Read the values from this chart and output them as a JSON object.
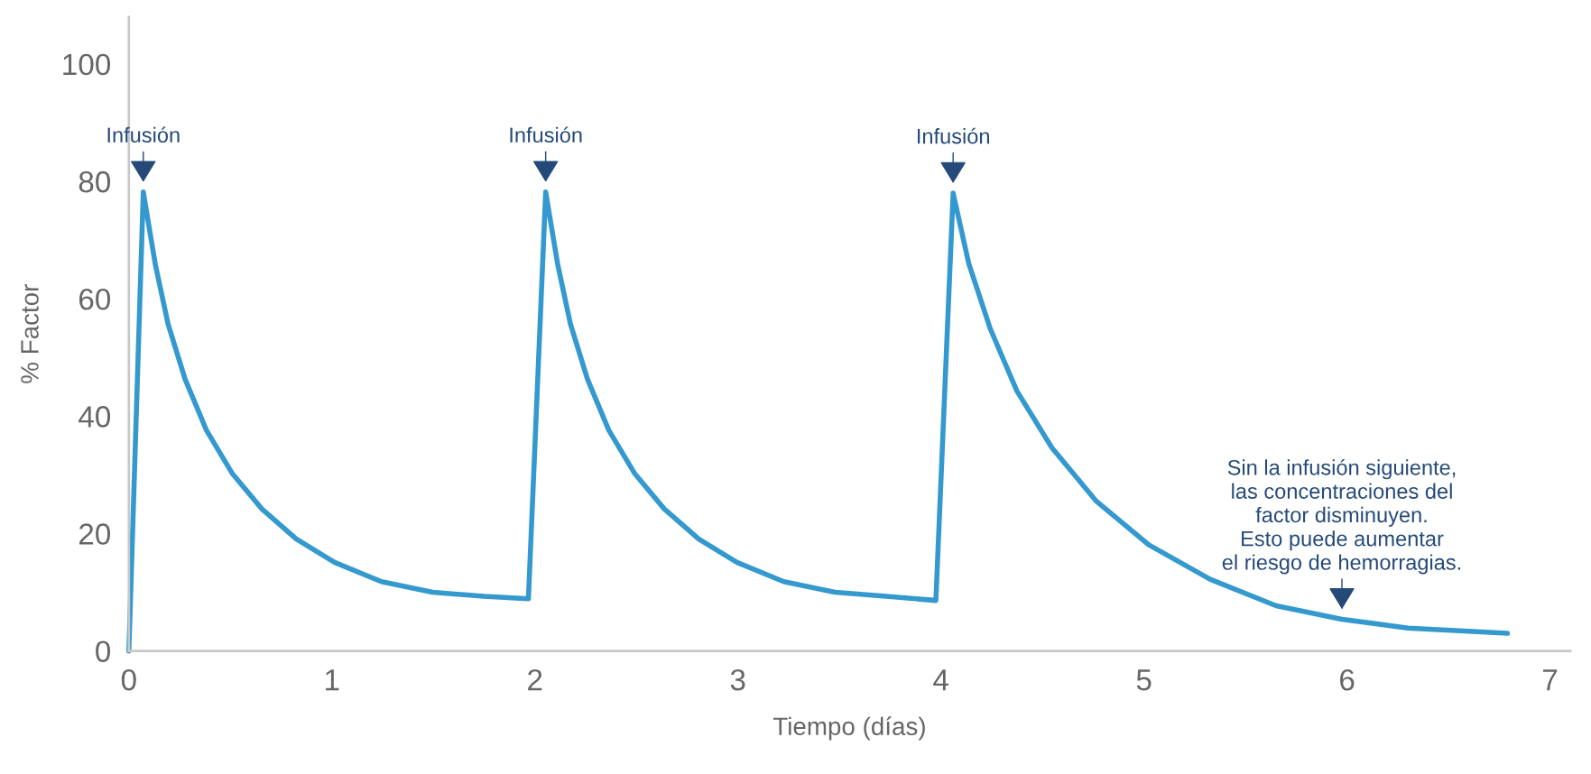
{
  "chart_data": {
    "type": "line",
    "xlabel": "Tiempo (días)",
    "ylabel": "% Factor",
    "xlim": [
      0,
      7.1
    ],
    "ylim": [
      0,
      108
    ],
    "xticks": [
      0,
      1,
      2,
      3,
      4,
      5,
      6,
      7
    ],
    "yticks": [
      0,
      20,
      40,
      60,
      80,
      100
    ],
    "grid": false,
    "marker": "none",
    "line_style": "solid",
    "series": [
      {
        "color": "#3399cf",
        "x": [
          0,
          0.071,
          0.13,
          0.193,
          0.277,
          0.382,
          0.508,
          0.655,
          0.824,
          1.013,
          1.244,
          1.496,
          1.748,
          1.968,
          2.053,
          2.112,
          2.175,
          2.259,
          2.364,
          2.49,
          2.637,
          2.806,
          2.995,
          3.226,
          3.478,
          3.73,
          3.975,
          4.06,
          4.137,
          4.244,
          4.374,
          4.547,
          4.763,
          5.023,
          5.326,
          5.651,
          5.975,
          6.3,
          6.79
        ],
        "values": [
          0,
          78.2,
          65.9,
          55.7,
          46.3,
          37.6,
          30.3,
          24.2,
          19.1,
          15.1,
          11.8,
          10.0,
          9.3,
          8.9,
          78.2,
          65.9,
          55.7,
          46.3,
          37.6,
          30.3,
          24.2,
          19.1,
          15.1,
          11.8,
          10.0,
          9.3,
          8.6,
          78.0,
          66.0,
          54.8,
          44.3,
          34.6,
          25.6,
          18.1,
          12.2,
          7.7,
          5.4,
          3.9,
          3.0
        ]
      }
    ],
    "annotations": [
      {
        "text": "Infusión",
        "x": 0.071,
        "y": 78.2
      },
      {
        "text": "Infusión",
        "x": 2.053,
        "y": 78.2
      },
      {
        "text": "Infusión",
        "x": 4.06,
        "y": 78.0
      },
      {
        "text": "Sin la infusión siguiente,\nlas concentraciones del\nfactor disminuyen.\nEsto puede aumentar\nel riesgo de hemorragias.",
        "x": 5.975,
        "y": 5.4
      }
    ]
  }
}
